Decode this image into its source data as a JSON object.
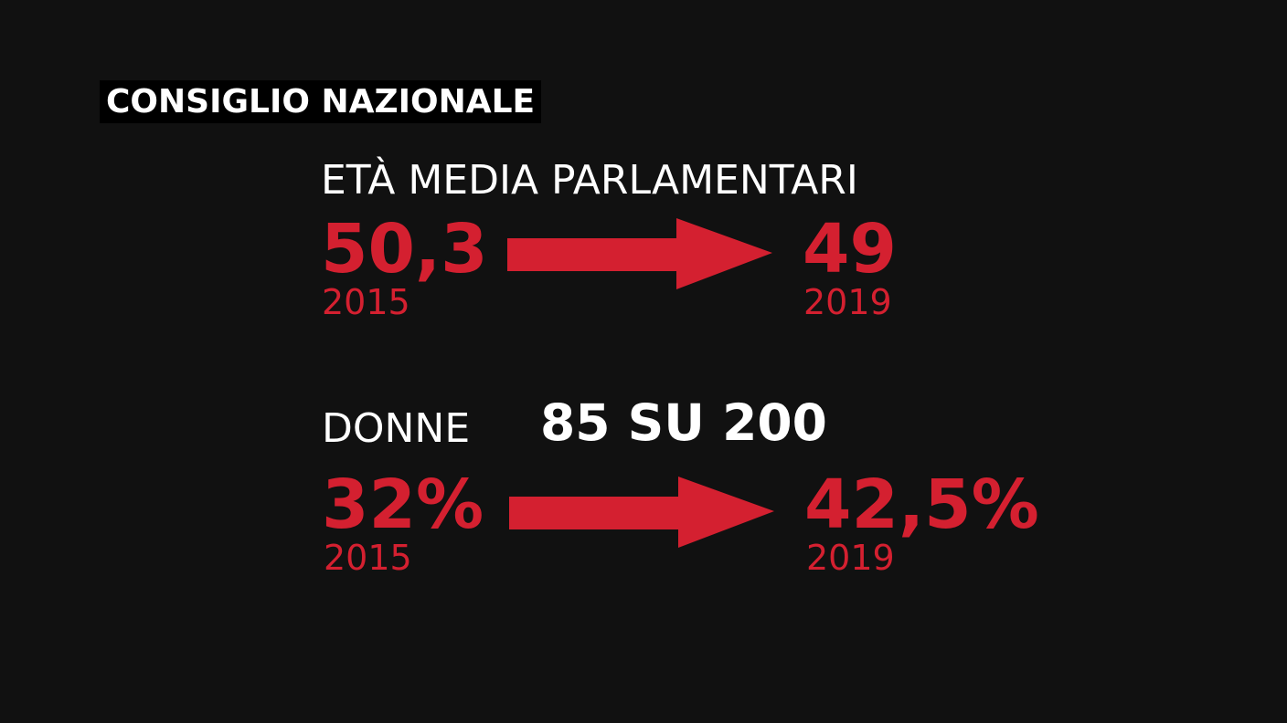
{
  "header": {
    "title": "CONSIGLIO NAZIONALE"
  },
  "age": {
    "label": "ETÀ MEDIA PARLAMENTARI",
    "from_value": "50,3",
    "from_year": "2015",
    "to_value": "49",
    "to_year": "2019"
  },
  "women": {
    "label": "DONNE",
    "count_text": "85 SU 200",
    "from_value": "32%",
    "from_year": "2015",
    "to_value": "42,5%",
    "to_year": "2019"
  },
  "colors": {
    "background": "#111111",
    "accent_red": "#d42030",
    "text_white": "#ffffff"
  },
  "icons": [
    "arrow-right-icon",
    "arrow-right-icon"
  ]
}
